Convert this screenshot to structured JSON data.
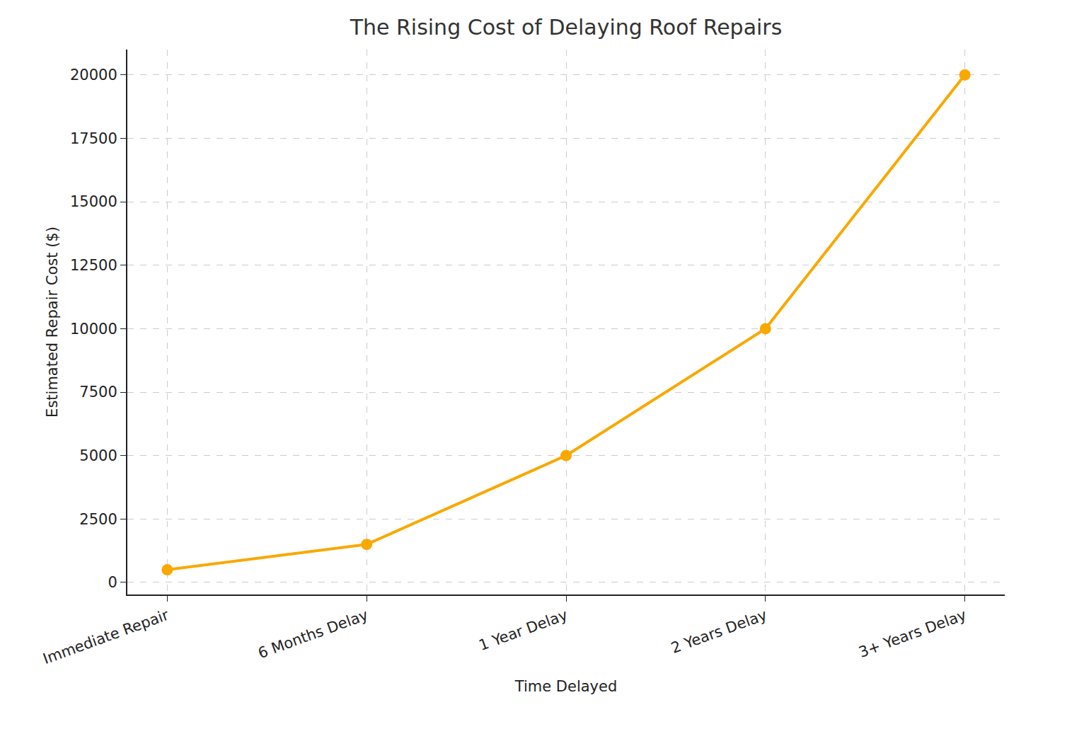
{
  "chart_data": {
    "type": "line",
    "title": "The Rising Cost of Delaying Roof Repairs",
    "x_label": "Time Delayed",
    "y_label": "Estimated Repair Cost ($)",
    "categories": [
      "Immediate Repair",
      "6 Months Delay",
      "1 Year Delay",
      "2 Years Delay",
      "3+ Years Delay"
    ],
    "values": [
      500,
      1500,
      5000,
      10000,
      20000
    ],
    "color": "#f9a800",
    "marker": "circle",
    "line_style": "solid",
    "ylim": [
      -475,
      21000
    ],
    "yticks": [
      0,
      2500,
      5000,
      7500,
      10000,
      12500,
      15000,
      17500,
      20000
    ],
    "grid": true
  }
}
